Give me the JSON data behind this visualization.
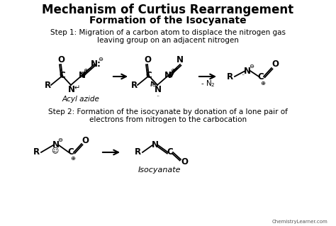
{
  "title_line1": "Mechanism of Curtius Rearrangement",
  "title_line2": "Formation of the Isocyanate",
  "step1_line1": "Step 1: Migration of a carbon atom to displace the nitrogen gas",
  "step1_line2": "leaving group on an adjacent nitrogen",
  "step2_line1": "Step 2: Formation of the isocyanate by donation of a lone pair of",
  "step2_line2": "electrons from nitrogen to the carbocation",
  "label_acyl": "Acyl azide",
  "label_iso": "Isocyanate",
  "watermark": "ChemistryLearner.com",
  "bg": "#ffffff",
  "fg": "#000000",
  "minus": "⊖",
  "plus": "⊕"
}
